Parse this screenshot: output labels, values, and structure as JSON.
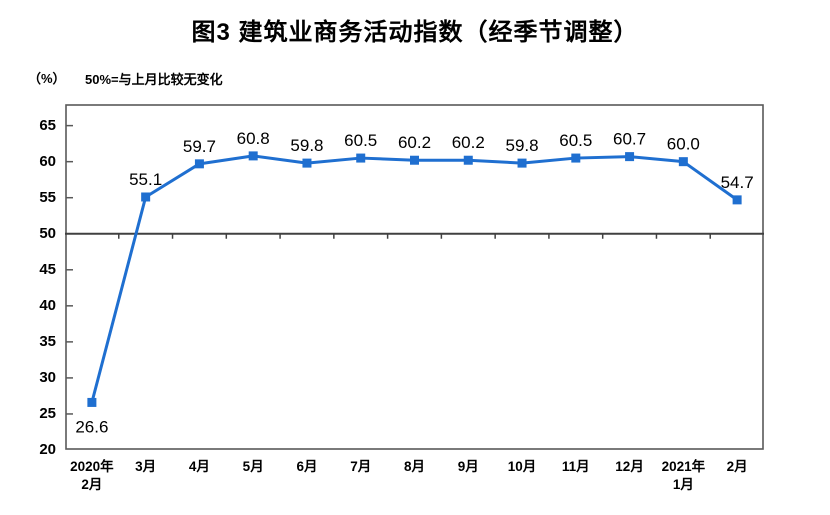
{
  "title": "图3 建筑业商务活动指数（经季节调整）",
  "subtitle": {
    "unit_label": "（%）",
    "note": "50%=与上月比较无变化"
  },
  "colors": {
    "line": "#1f6fd0",
    "marker": "#1f6fd0",
    "axis": "#595959",
    "reference_line": "#404040",
    "text": "#000000"
  },
  "chart_data": {
    "type": "line",
    "title": "图3 建筑业商务活动指数（经季节调整）",
    "ylabel": "（%）",
    "note": "50%=与上月比较无变化",
    "categories": [
      "2020年\n2月",
      "3月",
      "4月",
      "5月",
      "6月",
      "7月",
      "8月",
      "9月",
      "10月",
      "11月",
      "12月",
      "2021年\n1月",
      "2月"
    ],
    "values": [
      26.6,
      55.1,
      59.7,
      60.8,
      59.8,
      60.5,
      60.2,
      60.2,
      59.8,
      60.5,
      60.7,
      60.0,
      54.7
    ],
    "ylim": [
      20,
      68
    ],
    "y_ticks": [
      20,
      25,
      30,
      35,
      40,
      45,
      50,
      55,
      60,
      65
    ],
    "reference_line": 50,
    "grid": false,
    "legend_position": "none",
    "marker": "square",
    "label_decimals": 1
  }
}
